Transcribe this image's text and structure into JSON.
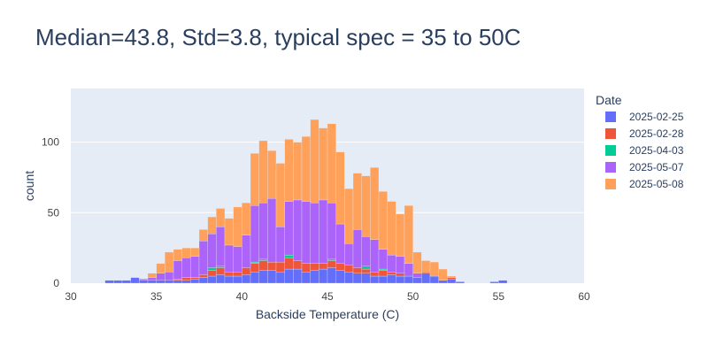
{
  "chart_data": {
    "type": "bar",
    "barmode": "stack",
    "title": "Median=43.8, Std=3.8, typical spec = 35 to 50C",
    "xlabel": "Backside Temperature (C)",
    "ylabel": "count",
    "xlim": [
      30,
      60
    ],
    "ylim": [
      0,
      138
    ],
    "xticks": [
      30,
      35,
      40,
      45,
      50,
      55,
      60
    ],
    "yticks": [
      0,
      50,
      100
    ],
    "legend_title": "Date",
    "legend_position": "right",
    "bin_width": 0.5,
    "x": [
      32.25,
      32.75,
      33.25,
      33.75,
      34.25,
      34.75,
      35.25,
      35.75,
      36.25,
      36.75,
      37.25,
      37.75,
      38.25,
      38.75,
      39.25,
      39.75,
      40.25,
      40.75,
      41.25,
      41.75,
      42.25,
      42.75,
      43.25,
      43.75,
      44.25,
      44.75,
      45.25,
      45.75,
      46.25,
      46.75,
      47.25,
      47.75,
      48.25,
      48.75,
      49.25,
      49.75,
      50.25,
      50.75,
      51.25,
      51.75,
      52.25,
      52.75,
      53.25,
      53.75,
      54.25,
      54.75,
      55.25,
      55.75
    ],
    "series": [
      {
        "name": "2025-02-25",
        "color": "#636efa",
        "values": [
          2,
          2,
          2,
          4,
          2,
          2,
          2,
          2,
          2,
          2,
          3,
          4,
          5,
          6,
          5,
          5,
          6,
          8,
          9,
          9,
          8,
          10,
          10,
          8,
          9,
          10,
          11,
          9,
          8,
          7,
          7,
          5,
          5,
          6,
          5,
          5,
          4,
          7,
          5,
          2,
          3,
          1,
          0,
          0,
          0,
          1,
          2,
          0
        ]
      },
      {
        "name": "2025-02-28",
        "color": "#ef553b",
        "values": [
          0,
          0,
          0,
          0,
          0,
          0,
          0,
          0,
          1,
          2,
          1,
          2,
          4,
          5,
          3,
          3,
          5,
          6,
          7,
          6,
          7,
          8,
          6,
          6,
          5,
          4,
          5,
          5,
          5,
          4,
          3,
          3,
          4,
          2,
          2,
          0,
          0,
          1,
          0,
          0,
          1,
          0,
          0,
          0,
          0,
          0,
          0,
          0
        ]
      },
      {
        "name": "2025-04-03",
        "color": "#00cc96",
        "values": [
          0,
          0,
          0,
          0,
          0,
          0,
          0,
          0,
          0,
          0,
          0,
          0,
          2,
          1,
          0,
          0,
          0,
          1,
          1,
          0,
          0,
          2,
          0,
          0,
          0,
          0,
          1,
          0,
          0,
          0,
          2,
          0,
          1,
          0,
          0,
          0,
          0,
          0,
          0,
          0,
          0,
          0,
          0,
          0,
          0,
          0,
          0,
          0
        ]
      },
      {
        "name": "2025-05-07",
        "color": "#ab63fa",
        "values": [
          0,
          0,
          0,
          0,
          1,
          2,
          5,
          6,
          13,
          14,
          15,
          24,
          24,
          28,
          19,
          18,
          23,
          40,
          40,
          45,
          25,
          38,
          43,
          44,
          43,
          45,
          40,
          28,
          15,
          27,
          21,
          23,
          14,
          12,
          12,
          9,
          3,
          0,
          0,
          0,
          0,
          0,
          0,
          0,
          0,
          0,
          0,
          0
        ]
      },
      {
        "name": "2025-05-08",
        "color": "#ffa15a",
        "values": [
          0,
          0,
          0,
          0,
          0,
          3,
          7,
          14,
          8,
          7,
          6,
          8,
          12,
          13,
          19,
          28,
          23,
          37,
          44,
          34,
          45,
          44,
          41,
          46,
          59,
          51,
          56,
          51,
          39,
          40,
          43,
          51,
          41,
          38,
          30,
          41,
          15,
          8,
          10,
          8,
          1,
          0,
          0,
          0,
          0,
          0,
          0,
          0
        ]
      }
    ]
  }
}
